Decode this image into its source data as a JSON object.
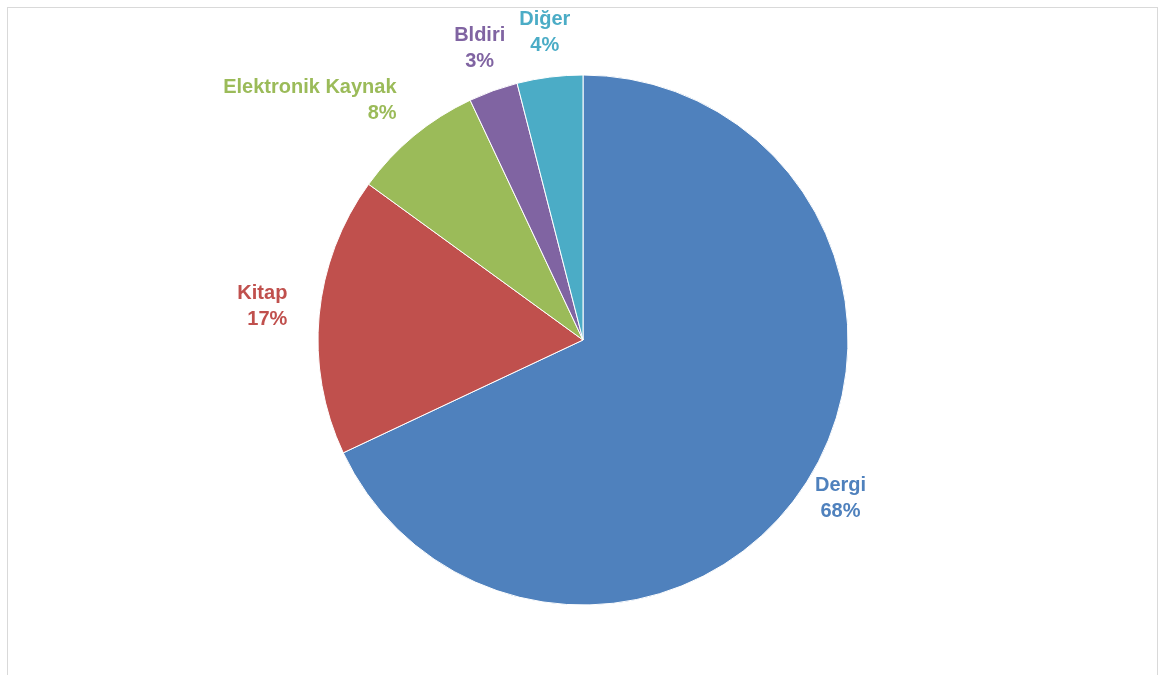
{
  "chart_data": {
    "type": "pie",
    "categories": [
      "Dergi",
      "Kitap",
      "Elektronik Kaynak",
      "Bldiri",
      "Diğer"
    ],
    "values": [
      68,
      17,
      8,
      3,
      4
    ],
    "colors": [
      "#4f81bd",
      "#c0504d",
      "#9bbb59",
      "#8064a2",
      "#4bacc6"
    ],
    "value_labels": [
      "68%",
      "17%",
      "8%",
      "3%",
      "4%"
    ],
    "legend": false
  }
}
